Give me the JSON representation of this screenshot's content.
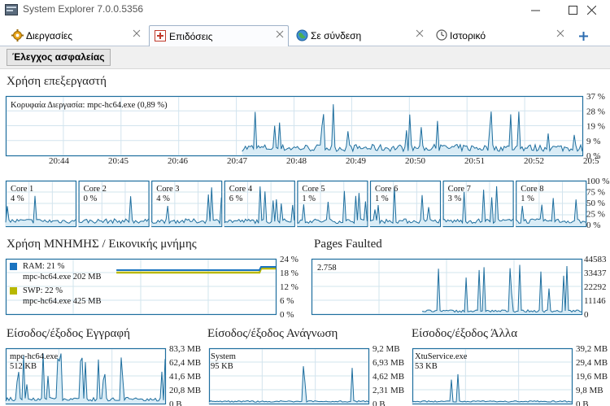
{
  "window": {
    "title": "System Explorer 7.0.0.5356"
  },
  "tabs": [
    {
      "label": "Διεργασίες",
      "icon": "gear-icon",
      "active": false
    },
    {
      "label": "Επιδόσεις",
      "icon": "performance-icon",
      "active": true
    },
    {
      "label": "Σε σύνδεση",
      "icon": "globe-icon",
      "active": false
    },
    {
      "label": "Ιστορικό",
      "icon": "clock-icon",
      "active": false
    }
  ],
  "toolbar": {
    "security_button": "Έλεγχος ασφαλείας"
  },
  "cpu": {
    "title": "Χρήση επεξεργαστή",
    "overlay": "Κορυφαία Διεργασία: mpc-hc64.exe (0,89 %)",
    "y_ticks": [
      "37 %",
      "28 %",
      "19 %",
      "9 %",
      "0 %"
    ],
    "x_ticks": [
      "20:44",
      "20:45",
      "20:46",
      "20:47",
      "20:48",
      "20:49",
      "20:50",
      "20:51",
      "20:52",
      "20:5"
    ]
  },
  "cores": {
    "items": [
      {
        "name": "Core 1",
        "value": "4 %"
      },
      {
        "name": "Core 2",
        "value": "0 %"
      },
      {
        "name": "Core 3",
        "value": "4 %"
      },
      {
        "name": "Core 4",
        "value": "6 %"
      },
      {
        "name": "Core 5",
        "value": "1 %"
      },
      {
        "name": "Core 6",
        "value": "1 %"
      },
      {
        "name": "Core 7",
        "value": "3 %"
      },
      {
        "name": "Core 8",
        "value": "1 %"
      }
    ],
    "y_ticks": [
      "100 %",
      "75 %",
      "50 %",
      "25 %",
      "0 %"
    ]
  },
  "memory": {
    "title": "Χρήση ΜΝΗΜΗΣ / Εικονικής μνήμης",
    "ram_label": "RAM: 21 %",
    "ram_process": "mpc-hc64.exe 202 MB",
    "swp_label": "SWP: 22 %",
    "swp_process": "mpc-hc64.exe 425 MB",
    "y_ticks": [
      "24 %",
      "18 %",
      "12 %",
      "6 %",
      "0 %"
    ],
    "colors": {
      "ram": "#1a73c0",
      "swp": "#b8b800"
    }
  },
  "pages_faulted": {
    "title": "Pages Faulted",
    "value": "2.758",
    "y_ticks": [
      "44583",
      "33437",
      "22292",
      "11146",
      "0"
    ]
  },
  "io_write": {
    "title": "Είσοδος/έξοδος Εγγραφή",
    "process": "mpc-hc64.exe",
    "value": "512 KB",
    "y_ticks": [
      "83,3 MB",
      "62,4 MB",
      "41,6 MB",
      "20,8 MB",
      "0 B"
    ]
  },
  "io_read": {
    "title": "Είσοδος/έξοδος Ανάγνωση",
    "process": "System",
    "value": "95 KB",
    "y_ticks": [
      "9,2 MB",
      "6,93 MB",
      "4,62 MB",
      "2,31 MB",
      "0 B"
    ]
  },
  "io_other": {
    "title": "Είσοδος/έξοδος Άλλα",
    "process": "XtuService.exe",
    "value": "53 KB",
    "y_ticks": [
      "39,2 MB",
      "29,4 MB",
      "19,6 MB",
      "9,8 MB",
      "0 B"
    ]
  }
}
